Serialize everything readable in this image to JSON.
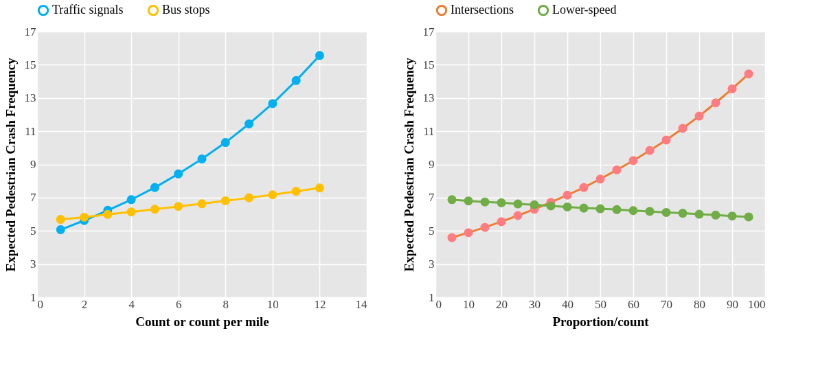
{
  "chart_data": [
    {
      "type": "line",
      "xlabel": "Count or count per mile",
      "ylabel": "Expected Pedestrian Crash Frequency",
      "x": [
        1,
        2,
        3,
        4,
        5,
        6,
        7,
        8,
        9,
        10,
        11,
        12
      ],
      "xlim": [
        0,
        14
      ],
      "xticks": [
        0,
        2,
        4,
        6,
        8,
        10,
        12,
        14
      ],
      "ylim": [
        1,
        17
      ],
      "yticks": [
        1,
        3,
        5,
        7,
        9,
        11,
        13,
        15,
        17
      ],
      "grid": true,
      "legend": "top",
      "marker": "circle",
      "line_style": "solid",
      "series": [
        {
          "name": "Traffic signals",
          "color": "#00b0f0",
          "values": [
            5.07,
            5.62,
            6.24,
            6.88,
            7.61,
            8.43,
            9.33,
            10.32,
            11.44,
            12.66,
            14.05,
            15.56
          ]
        },
        {
          "name": "Bus stops",
          "color": "#ffc000",
          "values": [
            5.69,
            5.82,
            5.99,
            6.14,
            6.3,
            6.47,
            6.63,
            6.81,
            6.99,
            7.17,
            7.38,
            7.58
          ]
        }
      ]
    },
    {
      "type": "line",
      "xlabel": "Proportion/count",
      "ylabel": "Expected Pedestrian Crash Frequency",
      "x": [
        5,
        10,
        15,
        20,
        25,
        30,
        35,
        40,
        45,
        50,
        55,
        60,
        65,
        70,
        75,
        80,
        85,
        90,
        95
      ],
      "xlim": [
        0,
        100
      ],
      "xticks": [
        0,
        10,
        20,
        30,
        40,
        50,
        60,
        70,
        80,
        90,
        100
      ],
      "ylim": [
        1,
        17
      ],
      "yticks": [
        1,
        3,
        5,
        7,
        9,
        11,
        13,
        15,
        17
      ],
      "grid": true,
      "legend": "top",
      "marker": "circle",
      "line_style": "solid",
      "series": [
        {
          "name": "Intersections",
          "color": "#ed7d31",
          "colors": [
            "#ff7c80",
            "#ff7c80",
            "#ff7c80",
            "#ff7c80",
            "#ff7c80",
            "#ff7c80",
            "#ff7c80",
            "#ff7c80",
            "#ff7c80",
            "#ff7c80",
            "#ff7c80",
            "#ff7c80",
            "#ff7c80",
            "#ff7c80",
            "#ff7c80",
            "#ff7c80",
            "#ff7c80",
            "#ff7c80",
            "#ff7c80"
          ],
          "values": [
            4.59,
            4.89,
            5.21,
            5.55,
            5.92,
            6.3,
            6.72,
            7.15,
            7.61,
            8.12,
            8.67,
            9.23,
            9.84,
            10.47,
            11.17,
            11.91,
            12.71,
            13.55,
            14.45
          ]
        },
        {
          "name": "Lower-speed",
          "color": "#70ad47",
          "values": [
            6.88,
            6.8,
            6.74,
            6.69,
            6.62,
            6.57,
            6.5,
            6.44,
            6.37,
            6.33,
            6.28,
            6.22,
            6.17,
            6.11,
            6.06,
            6,
            5.95,
            5.89,
            5.84
          ]
        }
      ]
    }
  ]
}
